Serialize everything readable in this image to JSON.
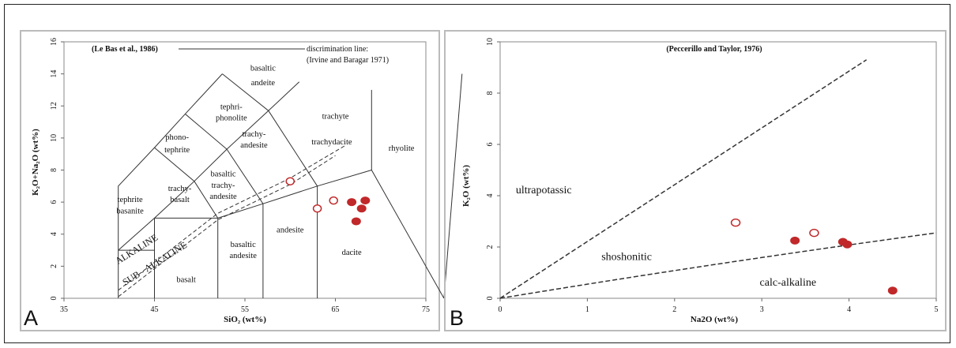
{
  "chart_data": [
    {
      "type": "scatter",
      "panel_label": "A",
      "title": "(Le Bas et al., 1986)",
      "annotation": "discrimination line:",
      "annotation2": "(Irvine and Baragar 1971)",
      "xlabel": "SiO₂ (wt%)",
      "ylabel": "K₂O+Na₂O (wt%)",
      "xlim": [
        35,
        75
      ],
      "ylim": [
        0,
        16
      ],
      "xticks": [
        "35",
        "45",
        "55",
        "65",
        "75"
      ],
      "yticks": [
        "0",
        "2",
        "4",
        "6",
        "8",
        "10",
        "12",
        "14",
        "16"
      ],
      "field_labels": [
        "basaltic andesite",
        "trachyte",
        "tephri-phonolite",
        "phono-tephrite",
        "trachy-andesite",
        "trachydacite",
        "rhyolite",
        "basaltic trachy-andesite",
        "tephrite basanite",
        "trachy-basalt",
        "basaltic andesite",
        "andesite",
        "dacite",
        "basalt",
        "ALKALINE",
        "SUB - ALKALINE"
      ],
      "series": [
        {
          "style": "open",
          "color": "#c0282a",
          "points": [
            [
              60.0,
              7.3
            ],
            [
              63.0,
              5.6
            ],
            [
              64.8,
              6.1
            ]
          ]
        },
        {
          "style": "filled",
          "color": "#c0282a",
          "points": [
            [
              66.8,
              6.0
            ],
            [
              67.9,
              5.6
            ],
            [
              68.3,
              6.1
            ],
            [
              67.3,
              4.8
            ]
          ]
        }
      ]
    },
    {
      "type": "scatter",
      "panel_label": "B",
      "title": "(Peccerillo and Taylor, 1976)",
      "xlabel": "Na2O (wt%)",
      "ylabel": "K₂O (wt%)",
      "xlim": [
        0,
        5
      ],
      "ylim": [
        0,
        10
      ],
      "xticks": [
        "0",
        "1",
        "2",
        "3",
        "4",
        "5"
      ],
      "yticks": [
        "0",
        "2",
        "4",
        "6",
        "8",
        "10"
      ],
      "field_labels": [
        "ultrapotassic",
        "shoshonitic",
        "calc-alkaline"
      ],
      "series": [
        {
          "style": "open",
          "color": "#c0282a",
          "points": [
            [
              2.7,
              2.95
            ],
            [
              3.6,
              2.55
            ]
          ]
        },
        {
          "style": "filled",
          "color": "#c0282a",
          "points": [
            [
              3.38,
              2.25
            ],
            [
              3.93,
              2.2
            ],
            [
              3.98,
              2.1
            ],
            [
              4.5,
              0.3
            ]
          ]
        }
      ]
    }
  ]
}
